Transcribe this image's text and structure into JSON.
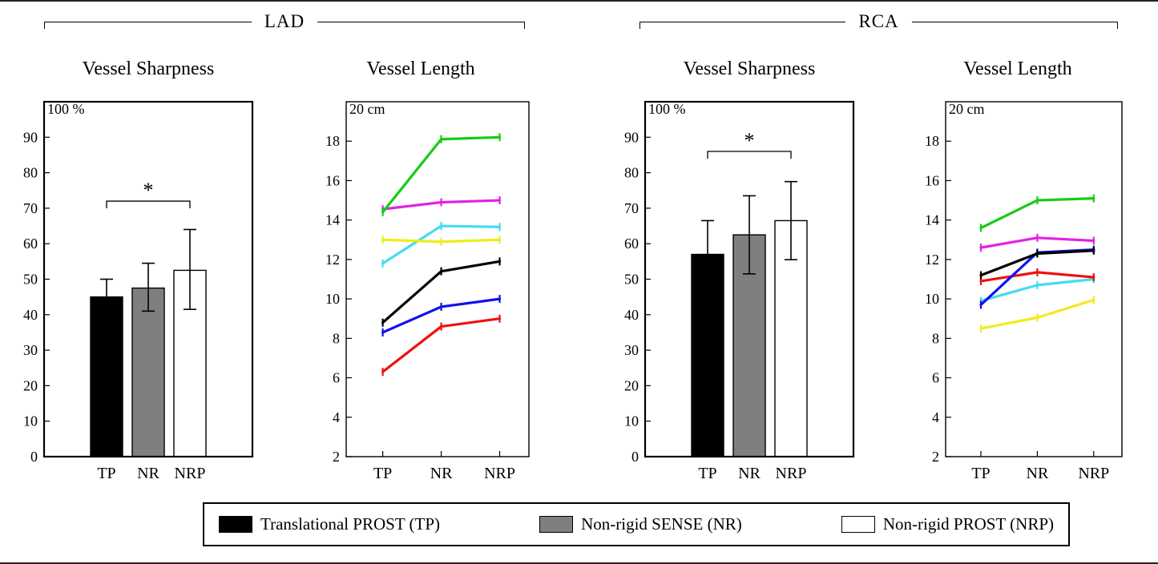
{
  "figure": {
    "groups": [
      {
        "id": "lad",
        "label": "LAD"
      },
      {
        "id": "rca",
        "label": "RCA"
      }
    ]
  },
  "legend": {
    "items": [
      {
        "label": "Translational PROST (TP)",
        "color": "#000000"
      },
      {
        "label": "Non-rigid SENSE (NR)",
        "color": "#7f7f7f"
      },
      {
        "label": "Non-rigid PROST (NRP)",
        "color": "#ffffff"
      }
    ]
  },
  "chart_data": [
    {
      "id": "lad-sharpness",
      "group": "LAD",
      "type": "bar",
      "title": "Vessel Sharpness",
      "unit": "%",
      "categories": [
        "TP",
        "NR",
        "NRP"
      ],
      "values": [
        45,
        47.5,
        52.5
      ],
      "errors_low": [
        4,
        6.5,
        11
      ],
      "errors_high": [
        5,
        7,
        11.5
      ],
      "bar_colors": [
        "#000000",
        "#7f7f7f",
        "#ffffff"
      ],
      "ylim": [
        0,
        100
      ],
      "ytick_step": 10,
      "ytick_labels": [
        "0",
        "10",
        "20",
        "30",
        "40",
        "50",
        "60",
        "70",
        "80",
        "90"
      ],
      "top_axis_label": "100 %",
      "grid": false,
      "significance": {
        "from_index": 0,
        "to_index": 2,
        "label": "*",
        "at_value": 72
      }
    },
    {
      "id": "lad-length",
      "group": "LAD",
      "type": "line",
      "title": "Vessel Length",
      "unit": "cm",
      "categories": [
        "TP",
        "NR",
        "NRP"
      ],
      "series": [
        {
          "name": "subject-red",
          "color": "#ee1111",
          "values": [
            6.3,
            8.6,
            9.0
          ]
        },
        {
          "name": "subject-blue",
          "color": "#1111ee",
          "values": [
            8.3,
            9.6,
            10.0
          ]
        },
        {
          "name": "subject-black",
          "color": "#000000",
          "values": [
            8.8,
            11.4,
            11.9
          ]
        },
        {
          "name": "subject-cyan",
          "color": "#44dcf0",
          "values": [
            11.8,
            13.7,
            13.65
          ]
        },
        {
          "name": "subject-yellow",
          "color": "#f0ec1c",
          "values": [
            13.0,
            12.9,
            13.0
          ]
        },
        {
          "name": "subject-magenta",
          "color": "#e322e3",
          "values": [
            14.55,
            14.9,
            15.0
          ]
        },
        {
          "name": "subject-green",
          "color": "#14cc14",
          "values": [
            14.4,
            18.1,
            18.2
          ]
        }
      ],
      "ylim": [
        2,
        20
      ],
      "ytick_step": 2,
      "ytick_labels": [
        "2",
        "4",
        "6",
        "8",
        "10",
        "12",
        "14",
        "16",
        "18"
      ],
      "top_axis_label": "20 cm",
      "grid": false
    },
    {
      "id": "rca-sharpness",
      "group": "RCA",
      "type": "bar",
      "title": "Vessel Sharpness",
      "unit": "%",
      "categories": [
        "TP",
        "NR",
        "NRP"
      ],
      "values": [
        57,
        62.5,
        66.5
      ],
      "errors_low": [
        6,
        11,
        11
      ],
      "errors_high": [
        9.5,
        11,
        11
      ],
      "bar_colors": [
        "#000000",
        "#7f7f7f",
        "#ffffff"
      ],
      "ylim": [
        0,
        100
      ],
      "ytick_step": 10,
      "ytick_labels": [
        "0",
        "10",
        "20",
        "30",
        "40",
        "50",
        "60",
        "70",
        "80",
        "90"
      ],
      "top_axis_label": "100 %",
      "grid": false,
      "significance": {
        "from_index": 0,
        "to_index": 2,
        "label": "*",
        "at_value": 86
      }
    },
    {
      "id": "rca-length",
      "group": "RCA",
      "type": "line",
      "title": "Vessel Length",
      "unit": "cm",
      "categories": [
        "TP",
        "NR",
        "NRP"
      ],
      "series": [
        {
          "name": "subject-yellow",
          "color": "#f0ec1c",
          "values": [
            8.5,
            9.05,
            9.95
          ]
        },
        {
          "name": "subject-cyan",
          "color": "#44dcf0",
          "values": [
            9.9,
            10.7,
            11.0
          ]
        },
        {
          "name": "subject-red",
          "color": "#ee1111",
          "values": [
            10.9,
            11.35,
            11.1
          ]
        },
        {
          "name": "subject-magenta",
          "color": "#e322e3",
          "values": [
            12.6,
            13.1,
            12.95
          ]
        },
        {
          "name": "subject-blue",
          "color": "#1111ee",
          "values": [
            9.7,
            12.35,
            12.5
          ]
        },
        {
          "name": "subject-black",
          "color": "#000000",
          "values": [
            11.2,
            12.3,
            12.45
          ]
        },
        {
          "name": "subject-green",
          "color": "#14cc14",
          "values": [
            13.6,
            15.0,
            15.1
          ]
        }
      ],
      "ylim": [
        2,
        20
      ],
      "ytick_step": 2,
      "ytick_labels": [
        "2",
        "4",
        "6",
        "8",
        "10",
        "12",
        "14",
        "16",
        "18"
      ],
      "top_axis_label": "20 cm",
      "grid": false
    }
  ]
}
